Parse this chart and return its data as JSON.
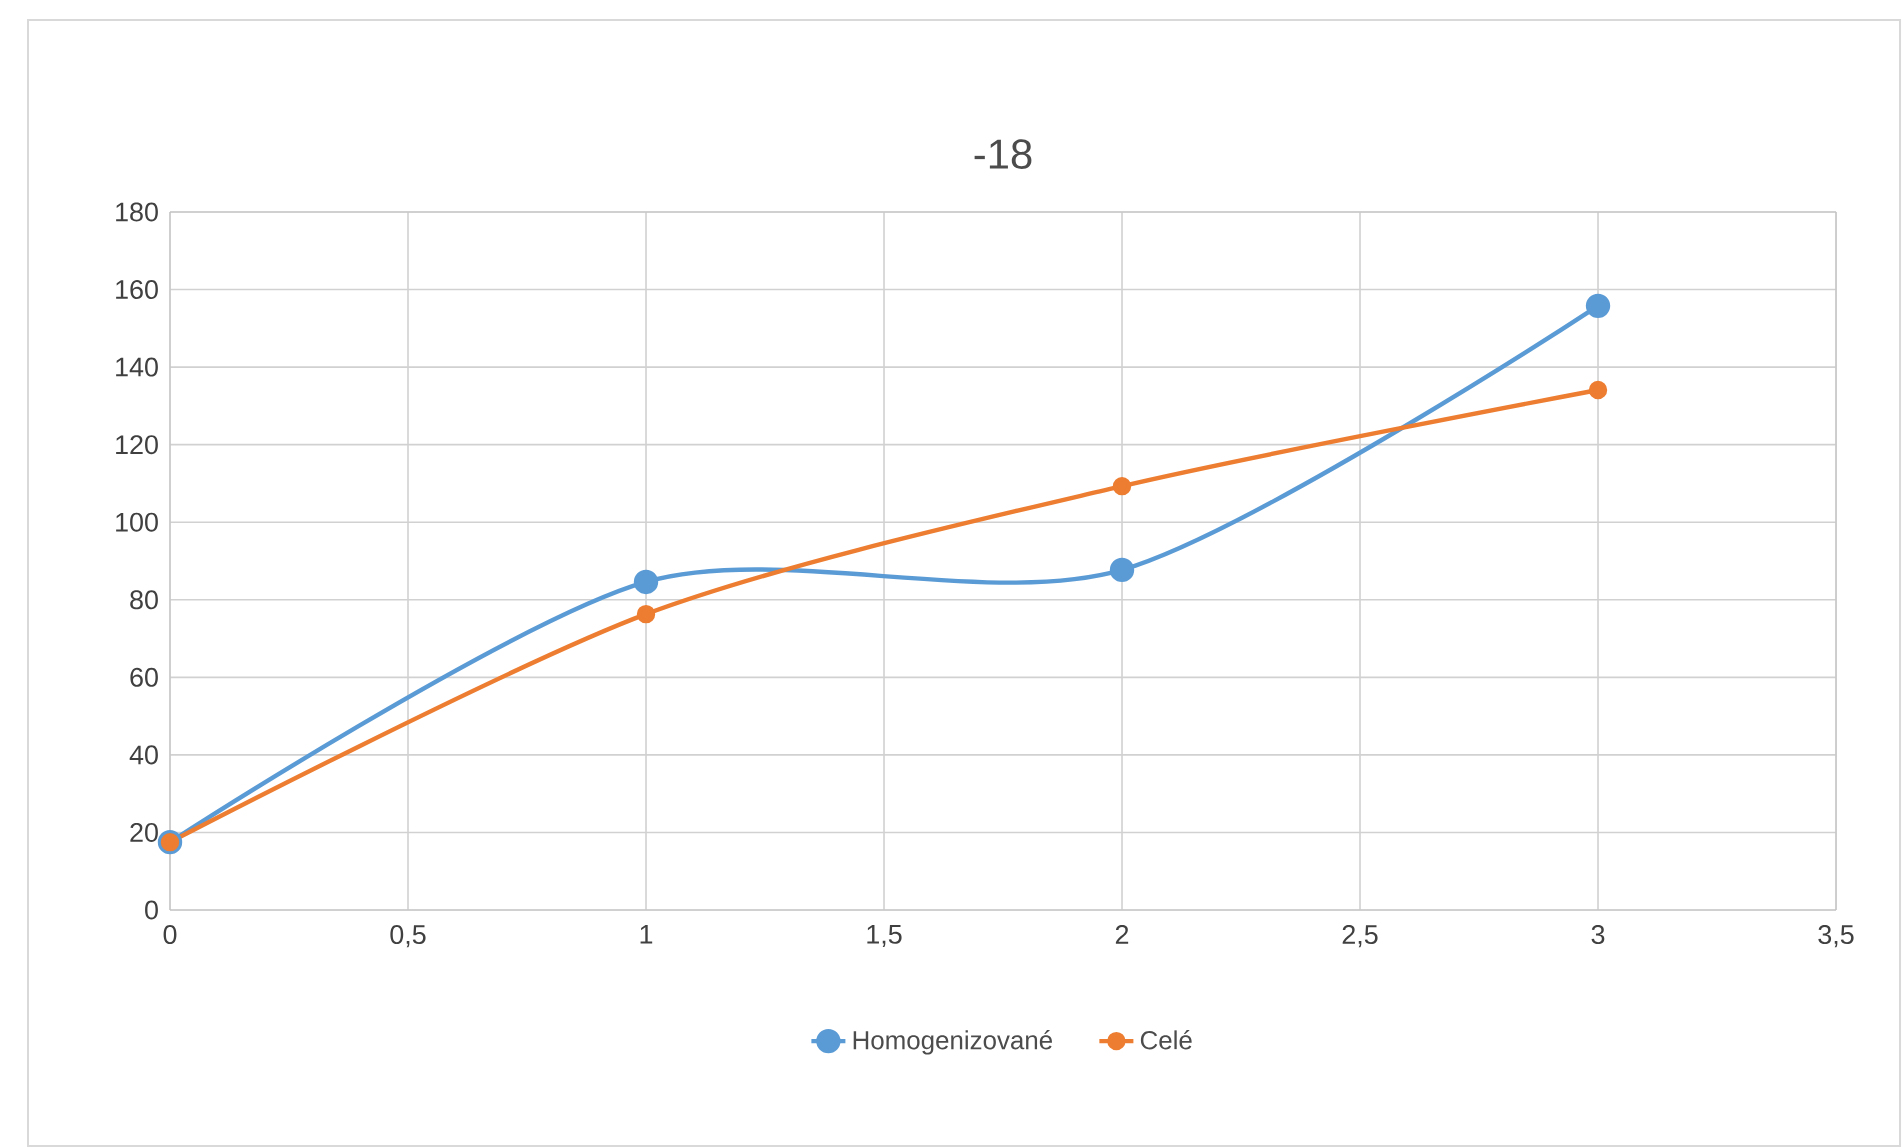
{
  "chart_data": {
    "type": "line",
    "title": "-18",
    "xlim": [
      0,
      3.5
    ],
    "ylim": [
      0,
      180
    ],
    "xticks": [
      0,
      {
        "value": 0.5,
        "label": "0,5"
      },
      1,
      {
        "value": 1.5,
        "label": "1,5"
      },
      2,
      {
        "value": 2.5,
        "label": "2,5"
      },
      3,
      {
        "value": 3.5,
        "label": "3,5"
      }
    ],
    "yticks": [
      0,
      20,
      40,
      60,
      80,
      100,
      120,
      140,
      160,
      180
    ],
    "grid": true,
    "legend": "bottom",
    "marker": "circle",
    "line_style": "solid",
    "series": [
      {
        "name": "Homogenizované",
        "color": "#5b9bd5",
        "x": [
          0,
          1,
          2,
          3
        ],
        "values": [
          17.5,
          84.6,
          87.7,
          155.8
        ]
      },
      {
        "name": "Celé",
        "color": "#ed7d31",
        "x": [
          0,
          1,
          2,
          3
        ],
        "values": [
          17.5,
          76.3,
          109.3,
          134.1
        ]
      }
    ]
  }
}
